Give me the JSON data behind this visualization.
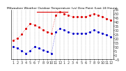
{
  "title": "Milwaukee Weather Outdoor Temperature (vs) Dew Point (Last 24 Hours)",
  "temp": [
    18,
    20,
    25,
    32,
    38,
    36,
    34,
    30,
    28,
    26,
    48,
    52,
    50,
    48,
    46,
    46,
    46,
    46,
    48,
    50,
    48,
    46,
    44,
    42
  ],
  "dew": [
    10,
    8,
    5,
    2,
    5,
    10,
    8,
    6,
    4,
    2,
    28,
    32,
    30,
    28,
    26,
    26,
    26,
    26,
    28,
    30,
    28,
    26,
    24,
    22
  ],
  "temp_color": "#dd0000",
  "dew_color": "#0000cc",
  "bg_color": "#ffffff",
  "ylim": [
    -5,
    55
  ],
  "yticks": [
    -5,
    0,
    5,
    10,
    15,
    20,
    25,
    30,
    35,
    40,
    45,
    50,
    55
  ],
  "xlabel_fontsize": 3.5,
  "ylabel_fontsize": 3.5,
  "title_fontsize": 3.2,
  "marker_size": 1.2,
  "grid_color": "#aaaaaa",
  "tick_color": "#333333",
  "x_labels": [
    "1",
    "2",
    "3",
    "4",
    "5",
    "6",
    "7",
    "8",
    "9",
    "10",
    "11",
    "12",
    "1",
    "2",
    "3",
    "4",
    "5",
    "6",
    "7",
    "8",
    "9",
    "10",
    "11",
    "12"
  ]
}
